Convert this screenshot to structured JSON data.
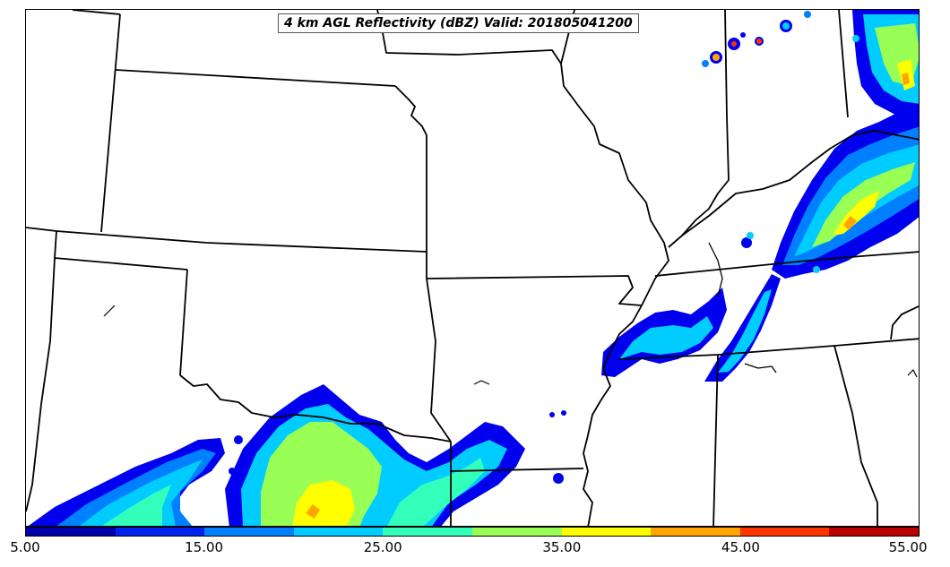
{
  "title": "4 km AGL Reflectivity (dBZ) Valid: 201805041200",
  "colorbar": {
    "colors": [
      "#0000aa",
      "#0022ee",
      "#0080ff",
      "#00ccff",
      "#33ffbb",
      "#99ff55",
      "#ffff00",
      "#ffa500",
      "#ff3300",
      "#bb0000"
    ],
    "ticks": [
      "5.00",
      "15.00",
      "25.00",
      "35.00",
      "45.00",
      "55.00"
    ]
  },
  "field_colors": {
    "dbz10": "#0000ee",
    "dbz15": "#0080ff",
    "dbz20": "#00ccff",
    "dbz25": "#33ffbb",
    "dbz30": "#99ff55",
    "dbz35": "#ffff00",
    "dbz40": "#ffa500",
    "dbz45": "#ff3300"
  }
}
